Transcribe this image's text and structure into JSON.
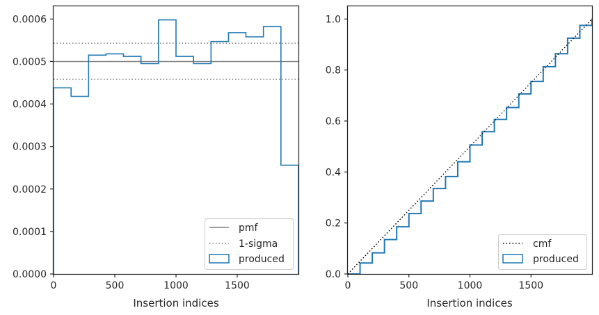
{
  "chart_data": [
    {
      "type": "histogram-step",
      "xlabel": "Insertion indices",
      "ylabel": "",
      "xlim": [
        0,
        2000
      ],
      "ylim": [
        0,
        0.00063
      ],
      "xticks": [
        0,
        500,
        1000,
        1500
      ],
      "xtick_labels": [
        "0",
        "500",
        "1000",
        "1500"
      ],
      "yticks": [
        0,
        0.0001,
        0.0002,
        0.0003,
        0.0004,
        0.0005,
        0.0006
      ],
      "ytick_labels": [
        "0.0000",
        "0.0001",
        "0.0002",
        "0.0003",
        "0.0004",
        "0.0005",
        "0.0006"
      ],
      "grid": false,
      "legend_position": "lower-right",
      "bin_edges": [
        0,
        143,
        286,
        429,
        571,
        714,
        857,
        1000,
        1143,
        1286,
        1429,
        1571,
        1714,
        1857,
        2000
      ],
      "series": [
        {
          "name": "produced",
          "kind": "step",
          "color": "#1f77b4",
          "values": [
            0.000438,
            0.000418,
            0.000515,
            0.000518,
            0.000512,
            0.000495,
            0.000598,
            0.000512,
            0.000495,
            0.000547,
            0.000568,
            0.000558,
            0.000582,
            0.000256
          ]
        }
      ],
      "reference_lines": [
        {
          "name": "pmf",
          "y": 0.0005,
          "style": "solid",
          "color": "#808080"
        },
        {
          "name": "1-sigma",
          "y": [
            0.000458,
            0.000543
          ],
          "style": "dotted",
          "color": "#808080"
        }
      ],
      "legend": [
        "pmf",
        "1-sigma",
        "produced"
      ]
    },
    {
      "type": "line",
      "xlabel": "Insertion indices",
      "ylabel": "",
      "xlim": [
        0,
        2000
      ],
      "ylim": [
        0,
        1.05
      ],
      "xticks": [
        0,
        500,
        1000,
        1500
      ],
      "xtick_labels": [
        "0",
        "500",
        "1000",
        "1500"
      ],
      "yticks": [
        0,
        0.2,
        0.4,
        0.6,
        0.8,
        1.0
      ],
      "ytick_labels": [
        "0.0",
        "0.2",
        "0.4",
        "0.6",
        "0.8",
        "1.0"
      ],
      "grid": false,
      "legend_position": "lower-right",
      "series": [
        {
          "name": "cmf",
          "kind": "line",
          "style": "dotted",
          "color": "#000000",
          "x": [
            0,
            2000
          ],
          "y": [
            0,
            1.0
          ]
        },
        {
          "name": "produced",
          "kind": "step",
          "color": "#1f77b4",
          "x": [
            0,
            100,
            200,
            300,
            400,
            500,
            600,
            700,
            800,
            900,
            1000,
            1100,
            1200,
            1300,
            1400,
            1500,
            1600,
            1700,
            1800,
            1900,
            2000
          ],
          "y": [
            0,
            0.043,
            0.083,
            0.135,
            0.185,
            0.237,
            0.286,
            0.335,
            0.382,
            0.44,
            0.506,
            0.558,
            0.606,
            0.653,
            0.706,
            0.755,
            0.813,
            0.864,
            0.925,
            0.975,
            1.0
          ]
        }
      ],
      "legend": [
        "cmf",
        "produced"
      ]
    }
  ]
}
